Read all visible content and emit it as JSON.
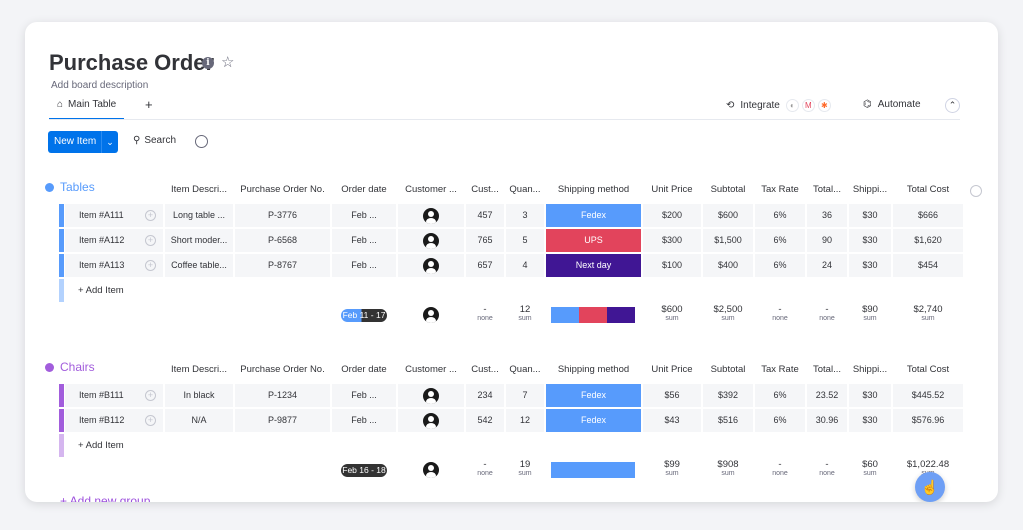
{
  "board": {
    "title": "Purchase Order",
    "description": "Add board description",
    "main_tab": "Main Table",
    "add_tab": "+",
    "integrate_label": "Integrate",
    "automate_label": "Automate"
  },
  "toolbar": {
    "new_item_label": "New Item",
    "search_label": "Search"
  },
  "columns": [
    "Item Descri...",
    "Purchase Order No.",
    "Order date",
    "Customer ...",
    "Cust...",
    "Quan...",
    "Shipping method",
    "Unit Price",
    "Subtotal",
    "Tax Rate",
    "Total...",
    "Shippi...",
    "Total Cost"
  ],
  "colors": {
    "tables_group": "#579bfc",
    "chairs_group": "#a25ddc",
    "fedex": "#579bfc",
    "ups": "#e2445c",
    "next_day": "#401694",
    "accent": "#0073ea"
  },
  "groups": [
    {
      "name": "Tables",
      "rows": [
        {
          "item": "Item #A111",
          "desc": "Long table ...",
          "po": "P-3776",
          "date": "Feb ...",
          "cust": "457",
          "qty": "3",
          "ship": "Fedex",
          "unit": "$200",
          "subtotal": "$600",
          "tax": "6%",
          "total": "36",
          "shipping": "$30",
          "cost": "$666"
        },
        {
          "item": "Item #A112",
          "desc": "Short moder...",
          "po": "P-6568",
          "date": "Feb ...",
          "cust": "765",
          "qty": "5",
          "ship": "UPS",
          "unit": "$300",
          "subtotal": "$1,500",
          "tax": "6%",
          "total": "90",
          "shipping": "$30",
          "cost": "$1,620"
        },
        {
          "item": "Item #A113",
          "desc": "Coffee table...",
          "po": "P-8767",
          "date": "Feb ...",
          "cust": "657",
          "qty": "4",
          "ship": "Next day",
          "unit": "$100",
          "subtotal": "$400",
          "tax": "6%",
          "total": "24",
          "shipping": "$30",
          "cost": "$454"
        }
      ],
      "add_item": "+ Add Item",
      "summary": {
        "date": "Feb 11 - 17",
        "cust": "-",
        "cust_sub": "none",
        "qty": "12",
        "qty_sub": "sum",
        "unit": "$600",
        "unit_sub": "sum",
        "subtotal": "$2,500",
        "subtotal_sub": "sum",
        "tax": "-",
        "tax_sub": "none",
        "total": "-",
        "total_sub": "none",
        "shipping": "$90",
        "shipping_sub": "sum",
        "cost": "$2,740",
        "cost_sub": "sum"
      }
    },
    {
      "name": "Chairs",
      "rows": [
        {
          "item": "Item #B111",
          "desc": "In black",
          "po": "P-1234",
          "date": "Feb ...",
          "cust": "234",
          "qty": "7",
          "ship": "Fedex",
          "unit": "$56",
          "subtotal": "$392",
          "tax": "6%",
          "total": "23.52",
          "shipping": "$30",
          "cost": "$445.52"
        },
        {
          "item": "Item #B112",
          "desc": "N/A",
          "po": "P-9877",
          "date": "Feb ...",
          "cust": "542",
          "qty": "12",
          "ship": "Fedex",
          "unit": "$43",
          "subtotal": "$516",
          "tax": "6%",
          "total": "30.96",
          "shipping": "$30",
          "cost": "$576.96"
        }
      ],
      "add_item": "+ Add Item",
      "summary": {
        "date": "Feb 16 - 18",
        "cust": "-",
        "cust_sub": "none",
        "qty": "19",
        "qty_sub": "sum",
        "unit": "$99",
        "unit_sub": "sum",
        "subtotal": "$908",
        "subtotal_sub": "sum",
        "tax": "-",
        "tax_sub": "none",
        "total": "-",
        "total_sub": "none",
        "shipping": "$60",
        "shipping_sub": "sum",
        "cost": "$1,022.48",
        "cost_sub": "sum"
      }
    }
  ],
  "add_new_group": "+ Add new group"
}
